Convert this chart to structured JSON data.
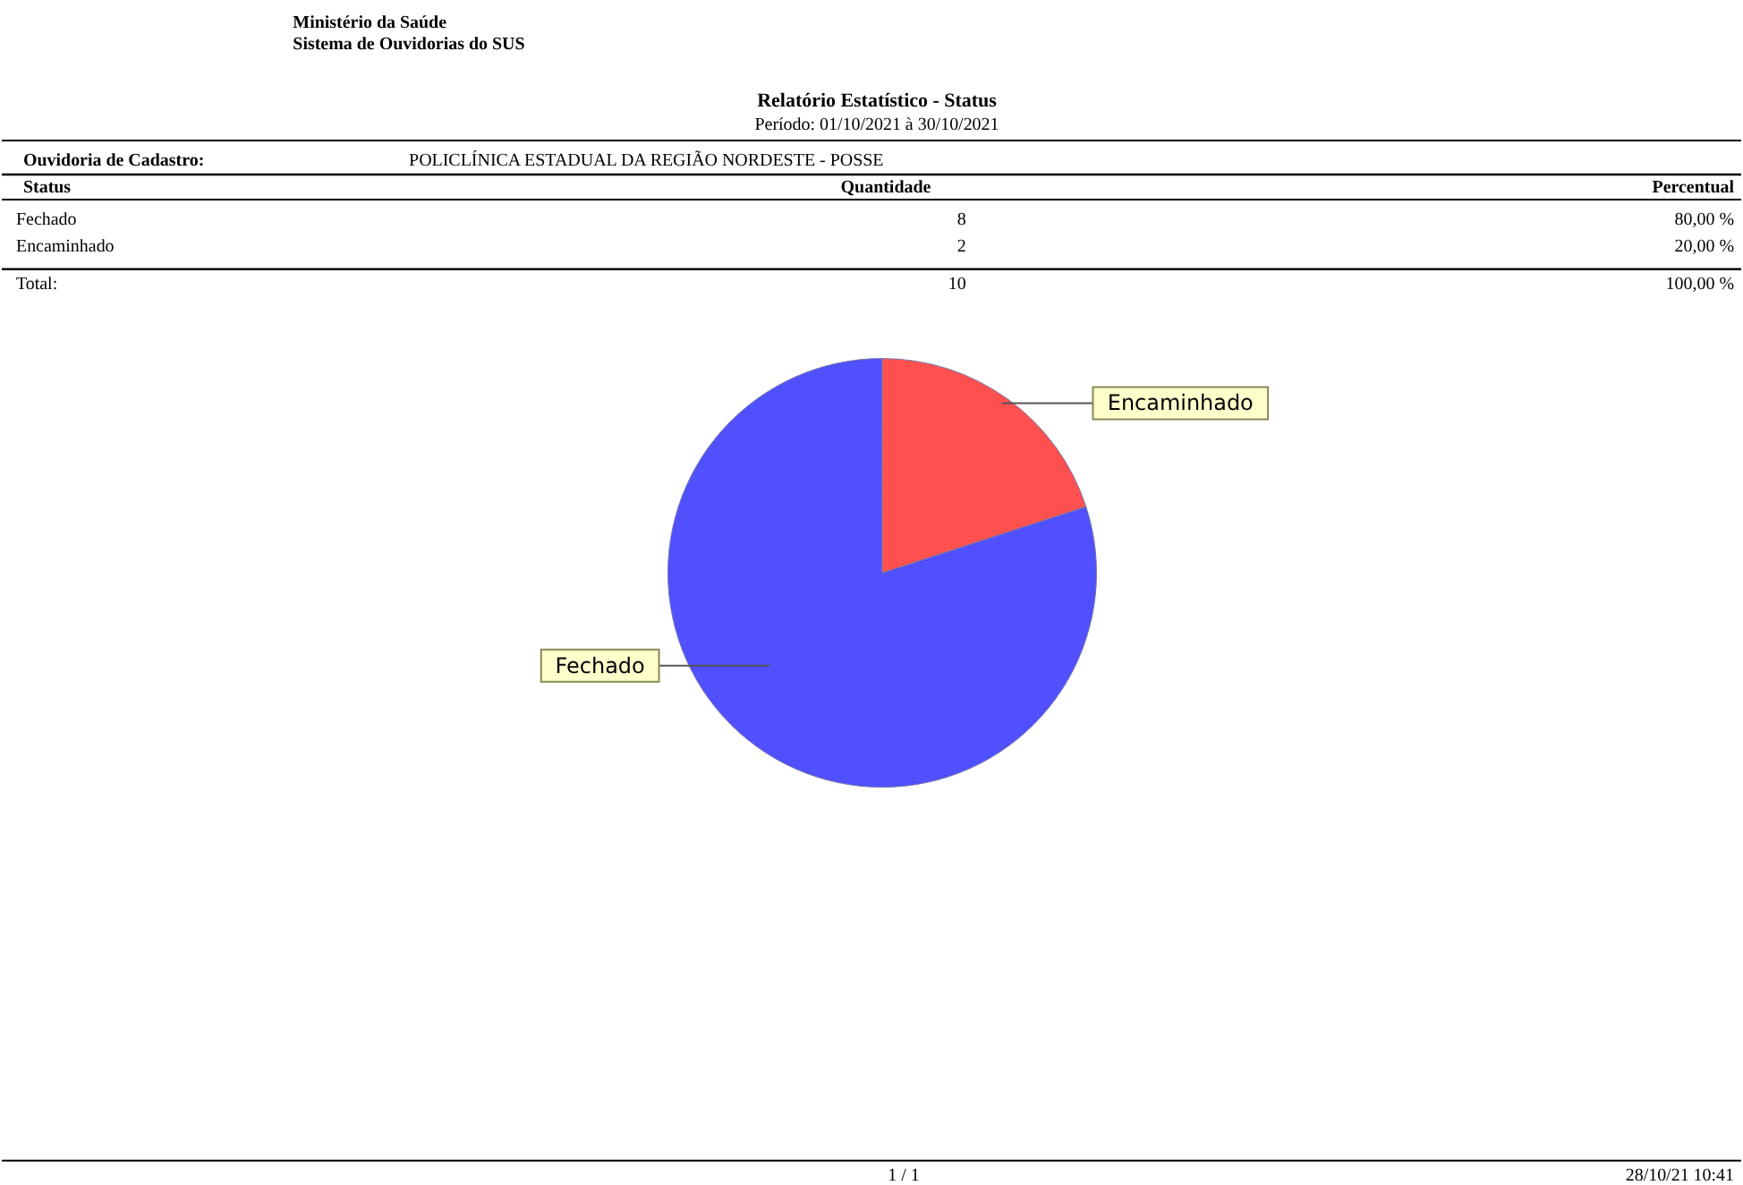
{
  "chart_data": {
    "type": "pie",
    "title": "Relatório Estatístico - Status",
    "categories": [
      "Fechado",
      "Encaminhado"
    ],
    "values": [
      80,
      20
    ],
    "colors": [
      "#5050ff",
      "#ff5050"
    ],
    "legend": false,
    "annotations": [
      "Ministério da Saúde",
      "Sistema de Ouvidorias do SUS",
      "Período:     01/10/2021        à   30/10/2021",
      "Ouvidoria de Cadastro:",
      "POLICLÍNICA ESTADUAL DA REGIÃO NORDESTE - POSSE",
      "Status",
      "Quantidade",
      "Percentual",
      "Total:",
      "10",
      "100,00 %",
      "1     /     1",
      "28/10/21 10:41",
      "Fechado",
      "8",
      "80,00 %",
      "Encaminhado",
      "2",
      "20,00 %"
    ]
  }
}
